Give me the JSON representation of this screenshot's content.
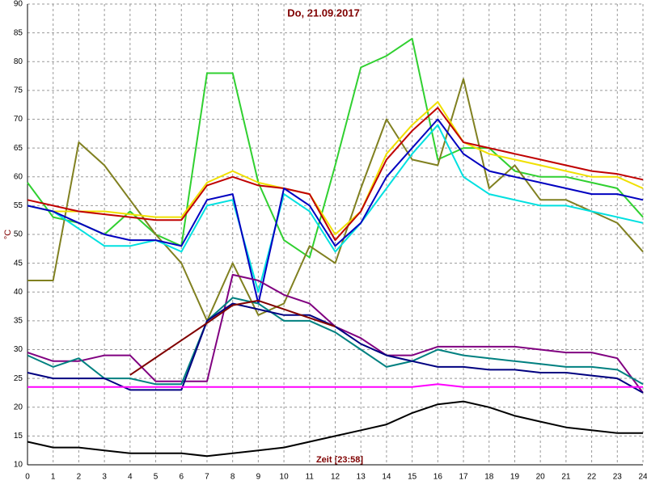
{
  "chart_data": {
    "type": "line",
    "title": "Do, 21.09.2017",
    "xlabel": "Zeit [23:58]",
    "ylabel": "°C",
    "x": [
      0,
      1,
      2,
      3,
      4,
      5,
      6,
      7,
      8,
      9,
      10,
      11,
      12,
      13,
      14,
      15,
      16,
      17,
      18,
      19,
      20,
      21,
      22,
      23,
      24
    ],
    "xlim": [
      0,
      24
    ],
    "xticks": [
      0,
      1,
      2,
      3,
      4,
      5,
      6,
      7,
      8,
      9,
      10,
      11,
      12,
      13,
      14,
      15,
      16,
      17,
      18,
      19,
      20,
      21,
      22,
      23,
      24
    ],
    "ylim": [
      10,
      90
    ],
    "yticks": [
      10,
      15,
      20,
      25,
      30,
      35,
      40,
      45,
      50,
      55,
      60,
      65,
      70,
      75,
      80,
      85,
      90
    ],
    "grid": true,
    "series": [
      {
        "color": "#30d030",
        "values": [
          59,
          53,
          52,
          50,
          54,
          50,
          48,
          78,
          78,
          59,
          49,
          46,
          62,
          79,
          81,
          84,
          63,
          65,
          65,
          61,
          60,
          60,
          59,
          58,
          53
        ]
      },
      {
        "color": "#808020",
        "values": [
          42,
          42,
          66,
          62,
          56,
          50,
          45,
          35,
          45,
          36,
          38,
          48,
          45,
          58,
          70,
          63,
          62,
          77,
          58,
          62,
          56,
          56,
          54,
          52,
          47
        ]
      },
      {
        "color": "#f0e000",
        "values": [
          55,
          54,
          54,
          54,
          53.5,
          53,
          53,
          59,
          61,
          59,
          58,
          57,
          50,
          54,
          64,
          69,
          73,
          66,
          64,
          63,
          62,
          61,
          60,
          60,
          58
        ]
      },
      {
        "color": "#00e0e0",
        "values": [
          55,
          54,
          51,
          48,
          48,
          49,
          47,
          55,
          56,
          40,
          57,
          54,
          47,
          52,
          58,
          64,
          69,
          60,
          57,
          56,
          55,
          55,
          54,
          53,
          52
        ]
      },
      {
        "color": "#c00000",
        "values": [
          56,
          55,
          54,
          53.5,
          53,
          52.5,
          52.5,
          58.5,
          60,
          58.5,
          58,
          57,
          49,
          54,
          63,
          68,
          72,
          66,
          65,
          64,
          63,
          62,
          61,
          60.5,
          59.5
        ]
      },
      {
        "color": "#0000c0",
        "values": [
          55,
          54,
          52,
          50,
          49,
          49,
          48,
          56,
          57,
          38,
          58,
          55,
          48,
          52,
          60,
          65,
          70,
          64,
          61,
          60,
          59,
          58,
          57,
          57,
          56
        ]
      },
      {
        "color": "#800080",
        "values": [
          29.5,
          28,
          28,
          29,
          29,
          24.5,
          24.5,
          24.5,
          43,
          42,
          39.5,
          38,
          34,
          32,
          29,
          29,
          30.5,
          30.5,
          30.5,
          30.5,
          30,
          29.5,
          29.5,
          28.5,
          22.5
        ]
      },
      {
        "color": "#008080",
        "values": [
          29,
          27,
          28.5,
          25,
          25,
          24,
          24,
          35,
          39,
          38,
          35,
          35,
          33,
          30,
          27,
          28,
          30,
          29,
          28.5,
          28,
          27.5,
          27,
          27,
          26.5,
          24
        ]
      },
      {
        "color": "#000080",
        "values": [
          26,
          25,
          25,
          25,
          23,
          23,
          23,
          35,
          38,
          37,
          36,
          36,
          34,
          31,
          29,
          28,
          27,
          27,
          26.5,
          26.5,
          26,
          26,
          25.5,
          25,
          22.5
        ]
      },
      {
        "color": "#800000",
        "values": [
          null,
          null,
          null,
          null,
          25.6,
          28.6,
          31.6,
          34.6,
          37.7,
          38.5,
          37,
          35.5,
          34,
          null,
          null,
          null,
          null,
          null,
          null,
          null,
          null,
          null,
          null,
          null,
          null
        ]
      },
      {
        "color": "#ff00ff",
        "values": [
          23.5,
          23.5,
          23.5,
          23.5,
          23.5,
          23.5,
          23.5,
          23.5,
          23.5,
          23.5,
          23.5,
          23.5,
          23.5,
          23.5,
          23.5,
          23.5,
          24,
          23.5,
          23.5,
          23.5,
          23.5,
          23.5,
          23.5,
          23.5,
          23.5
        ]
      },
      {
        "color": "#000000",
        "values": [
          14,
          13,
          13,
          12.5,
          12,
          12,
          12,
          11.5,
          12,
          12.5,
          13,
          14,
          15,
          16,
          17,
          19,
          20.5,
          21,
          20,
          18.5,
          17.5,
          16.5,
          16,
          15.5,
          15.5
        ]
      }
    ]
  }
}
